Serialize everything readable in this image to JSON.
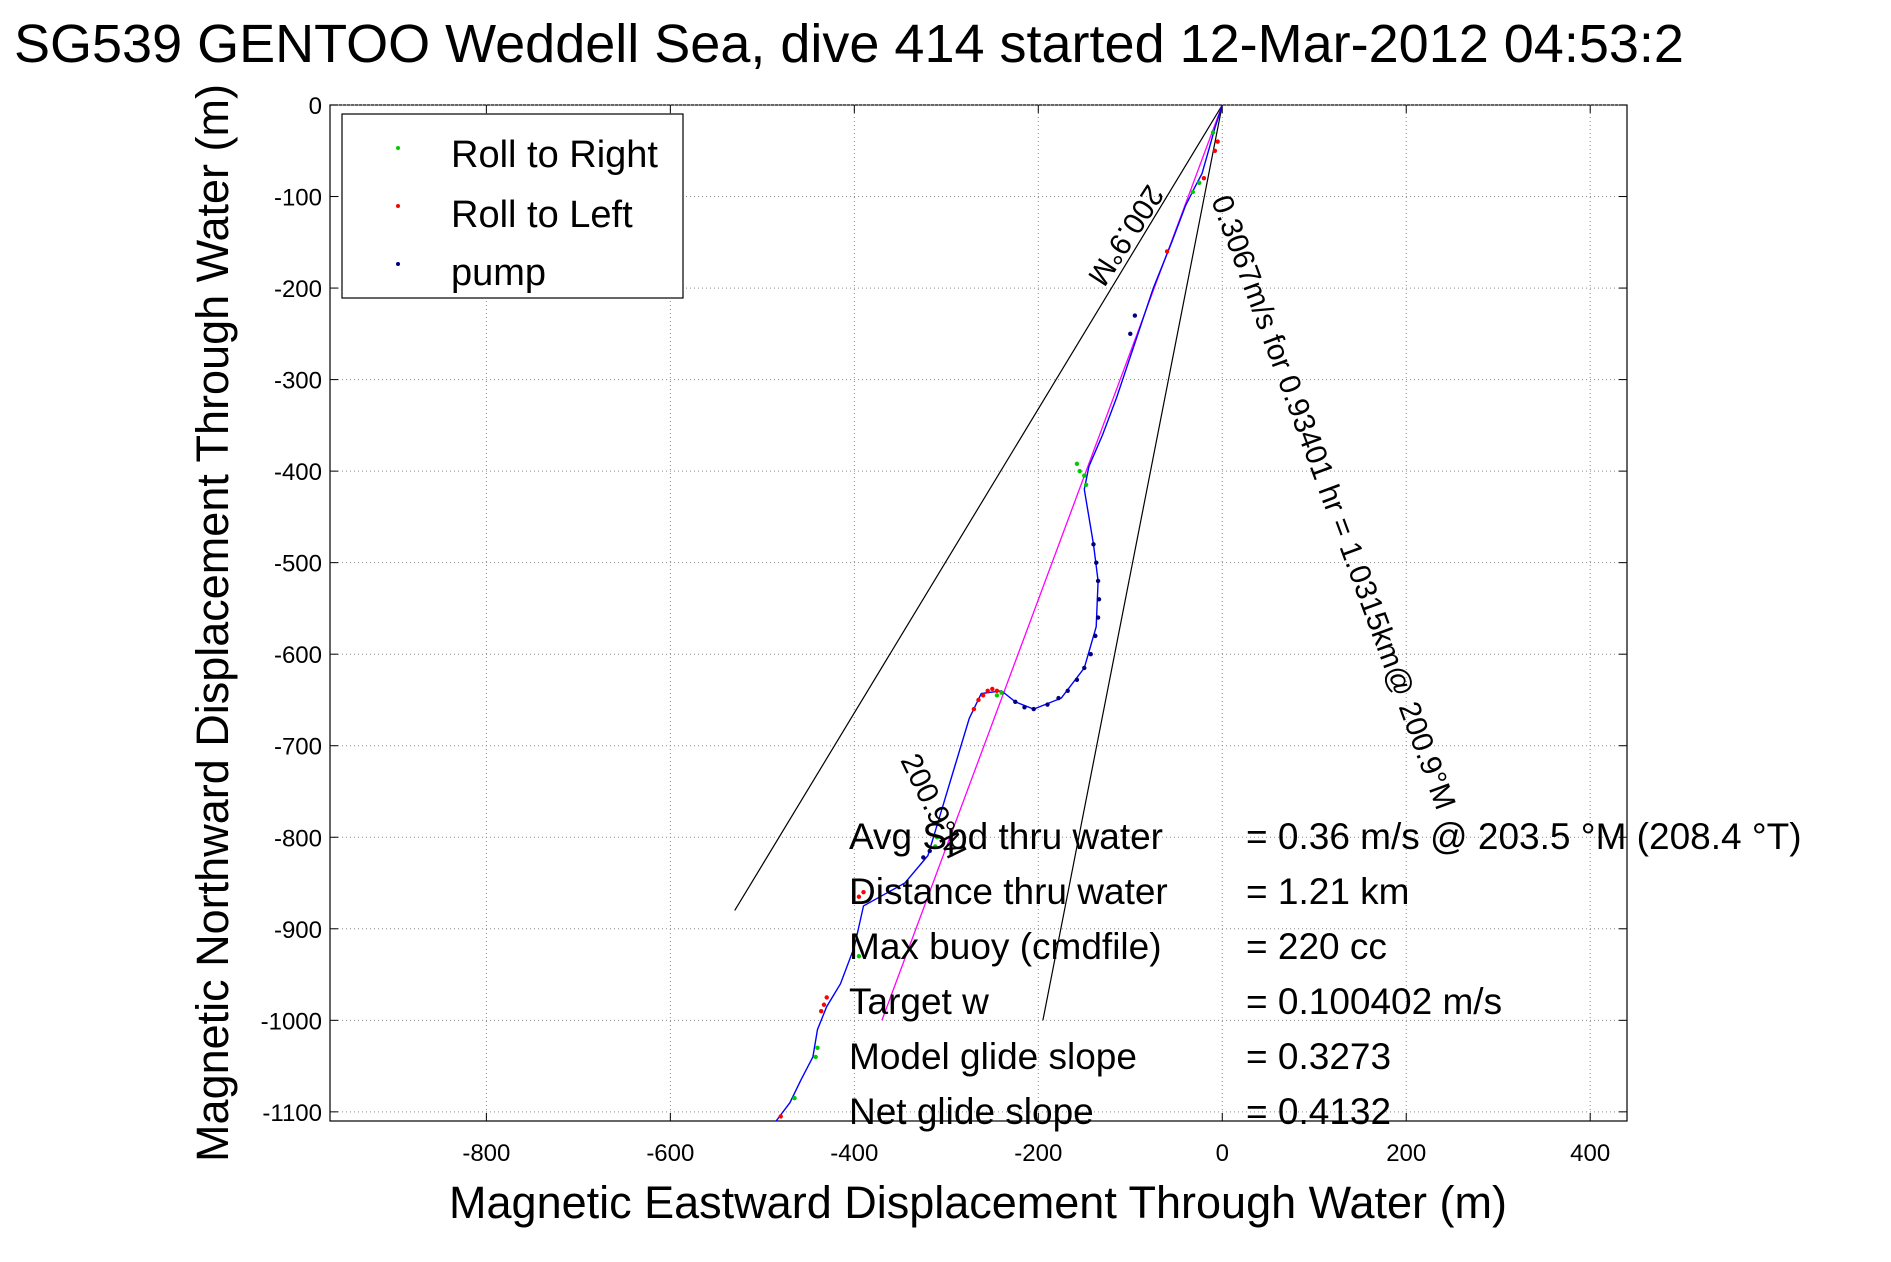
{
  "chart_data": {
    "type": "scatter",
    "title": "SG539 GENTOO Weddell Sea, dive 414 started 12-Mar-2012 04:53:2",
    "xlabel": "Magnetic Eastward Displacement Through Water (m)",
    "ylabel": "Magnetic Northward Displacement Through Water (m)",
    "xlim": [
      -970,
      440
    ],
    "ylim": [
      -1110,
      0
    ],
    "xticks": [
      -800,
      -600,
      -400,
      -200,
      0,
      200,
      400
    ],
    "xtick_labels": [
      "-800",
      "-600",
      "-400",
      "-200",
      "0",
      "200",
      "400"
    ],
    "yticks": [
      0,
      -100,
      -200,
      -300,
      -400,
      -500,
      -600,
      -700,
      -800,
      -900,
      -1000,
      -1100
    ],
    "ytick_labels": [
      "0",
      "-100",
      "-200",
      "-300",
      "-400",
      "-500",
      "-600",
      "-700",
      "-800",
      "-900",
      "-1000",
      "-1100"
    ],
    "grid": true,
    "legend_position": "top-left",
    "legend": [
      "Roll to Right",
      "Roll to Left",
      "pump"
    ],
    "colors": {
      "track": "#0000ff",
      "roll_right": "#00cc00",
      "roll_left": "#ff0000",
      "pump": "#000080",
      "target_line": "#ff00ff",
      "cone_line": "#000000"
    },
    "track_path": [
      [
        0,
        0
      ],
      [
        -8,
        -25
      ],
      [
        -15,
        -50
      ],
      [
        -22,
        -75
      ],
      [
        -30,
        -90
      ],
      [
        -40,
        -110
      ],
      [
        -55,
        -150
      ],
      [
        -75,
        -200
      ],
      [
        -95,
        -260
      ],
      [
        -115,
        -320
      ],
      [
        -130,
        -360
      ],
      [
        -145,
        -395
      ],
      [
        -150,
        -420
      ],
      [
        -145,
        -450
      ],
      [
        -140,
        -480
      ],
      [
        -135,
        -520
      ],
      [
        -137,
        -570
      ],
      [
        -150,
        -615
      ],
      [
        -175,
        -648
      ],
      [
        -205,
        -660
      ],
      [
        -225,
        -652
      ],
      [
        -240,
        -640
      ],
      [
        -262,
        -643
      ],
      [
        -275,
        -670
      ],
      [
        -290,
        -720
      ],
      [
        -305,
        -770
      ],
      [
        -320,
        -820
      ],
      [
        -345,
        -850
      ],
      [
        -390,
        -875
      ],
      [
        -400,
        -920
      ],
      [
        -415,
        -960
      ],
      [
        -430,
        -985
      ],
      [
        -440,
        -1010
      ],
      [
        -445,
        -1040
      ],
      [
        -458,
        -1065
      ],
      [
        -470,
        -1090
      ],
      [
        -485,
        -1110
      ]
    ],
    "roll_right": [
      [
        -10,
        -30
      ],
      [
        -25,
        -85
      ],
      [
        -32,
        -95
      ],
      [
        -158,
        -392
      ],
      [
        -155,
        -400
      ],
      [
        -150,
        -405
      ],
      [
        -148,
        -415
      ],
      [
        -240,
        -642
      ],
      [
        -245,
        -645
      ],
      [
        -310,
        -800
      ],
      [
        -312,
        -810
      ],
      [
        -395,
        -930
      ],
      [
        -440,
        -1030
      ],
      [
        -442,
        -1040
      ],
      [
        -465,
        -1085
      ]
    ],
    "roll_left": [
      [
        -5,
        -40
      ],
      [
        -8,
        -50
      ],
      [
        -20,
        -80
      ],
      [
        -60,
        -160
      ],
      [
        -245,
        -640
      ],
      [
        -250,
        -638
      ],
      [
        -255,
        -640
      ],
      [
        -260,
        -645
      ],
      [
        -265,
        -650
      ],
      [
        -270,
        -660
      ],
      [
        -390,
        -860
      ],
      [
        -395,
        -865
      ],
      [
        -430,
        -975
      ],
      [
        -433,
        -983
      ],
      [
        -436,
        -990
      ],
      [
        -480,
        -1105
      ]
    ],
    "pump": [
      [
        -140,
        -480
      ],
      [
        -137,
        -500
      ],
      [
        -135,
        -520
      ],
      [
        -134,
        -540
      ],
      [
        -135,
        -560
      ],
      [
        -138,
        -580
      ],
      [
        -143,
        -600
      ],
      [
        -150,
        -615
      ],
      [
        -158,
        -628
      ],
      [
        -168,
        -640
      ],
      [
        -178,
        -648
      ],
      [
        -190,
        -655
      ],
      [
        -205,
        -660
      ],
      [
        -215,
        -658
      ],
      [
        -225,
        -652
      ],
      [
        -100,
        -250
      ],
      [
        -95,
        -230
      ],
      [
        -318,
        -815
      ],
      [
        -325,
        -822
      ]
    ],
    "target_line": [
      [
        0,
        0
      ],
      [
        -370,
        -1000
      ]
    ],
    "cone_lines": [
      [
        [
          0,
          0
        ],
        [
          -530,
          -880
        ]
      ],
      [
        [
          0,
          0
        ],
        [
          -195,
          -1000
        ]
      ]
    ],
    "line_labels": [
      "0.3067m/s for 0.93401 hr = 1.0315km@ 200.9°M",
      "200.9°M",
      "200.9°M"
    ],
    "annotations": [
      {
        "label": "Avg Spd thru water",
        "value": "=  0.36 m/s @ 203.5 °M (208.4 °T)"
      },
      {
        "label": "Distance thru water",
        "value": "=  1.21 km"
      },
      {
        "label": "Max buoy (cmdfile)",
        "value": "= 220 cc"
      },
      {
        "label": "Target w",
        "value": "= 0.100402 m/s"
      },
      {
        "label": "Model glide slope",
        "value": "= 0.3273"
      },
      {
        "label": "Net glide slope",
        "value": "= 0.4132"
      }
    ]
  }
}
